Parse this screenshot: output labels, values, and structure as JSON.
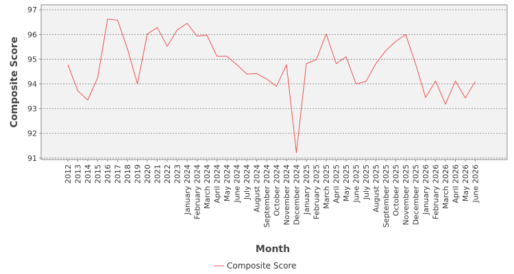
{
  "chart_data": {
    "type": "line",
    "xlabel": "Month",
    "ylabel": "Composite Score",
    "ylim": [
      90.94,
      97.2
    ],
    "yticks": [
      91,
      92,
      93,
      94,
      95,
      96,
      97
    ],
    "grid": true,
    "legend_position": "bottom-center",
    "categories": [
      "2012",
      "2013",
      "2014",
      "2015",
      "2016",
      "2017",
      "2018",
      "2019",
      "2020",
      "2021",
      "2022",
      "2023",
      "January 2024",
      "February 2024",
      "March 2024",
      "April 2024",
      "May 2024",
      "June 2024",
      "July 2024",
      "August 2024",
      "September 2024",
      "October 2024",
      "November 2024",
      "December 2024",
      "January 2025",
      "February 2025",
      "March 2025",
      "April 2025",
      "May 2025",
      "June 2025",
      "July 2025",
      "August 2025",
      "September 2025",
      "October 2025",
      "November 2025",
      "December 2025",
      "January 2026",
      "February 2026",
      "March 2026",
      "April 2026",
      "May 2026",
      "June 2026"
    ],
    "series": [
      {
        "name": "Composite Score",
        "color": "#f05050",
        "values": [
          94.78,
          93.72,
          93.35,
          94.25,
          96.62,
          96.58,
          95.42,
          94.0,
          96.02,
          96.28,
          95.52,
          96.18,
          96.45,
          95.93,
          95.97,
          95.12,
          95.12,
          94.78,
          94.4,
          94.42,
          94.2,
          93.9,
          94.78,
          91.22,
          94.82,
          94.98,
          96.02,
          94.82,
          95.1,
          94.0,
          94.1,
          94.82,
          95.35,
          95.72,
          96.0,
          94.8,
          93.45,
          94.12,
          93.18,
          94.12,
          93.43,
          94.1
        ]
      }
    ]
  }
}
